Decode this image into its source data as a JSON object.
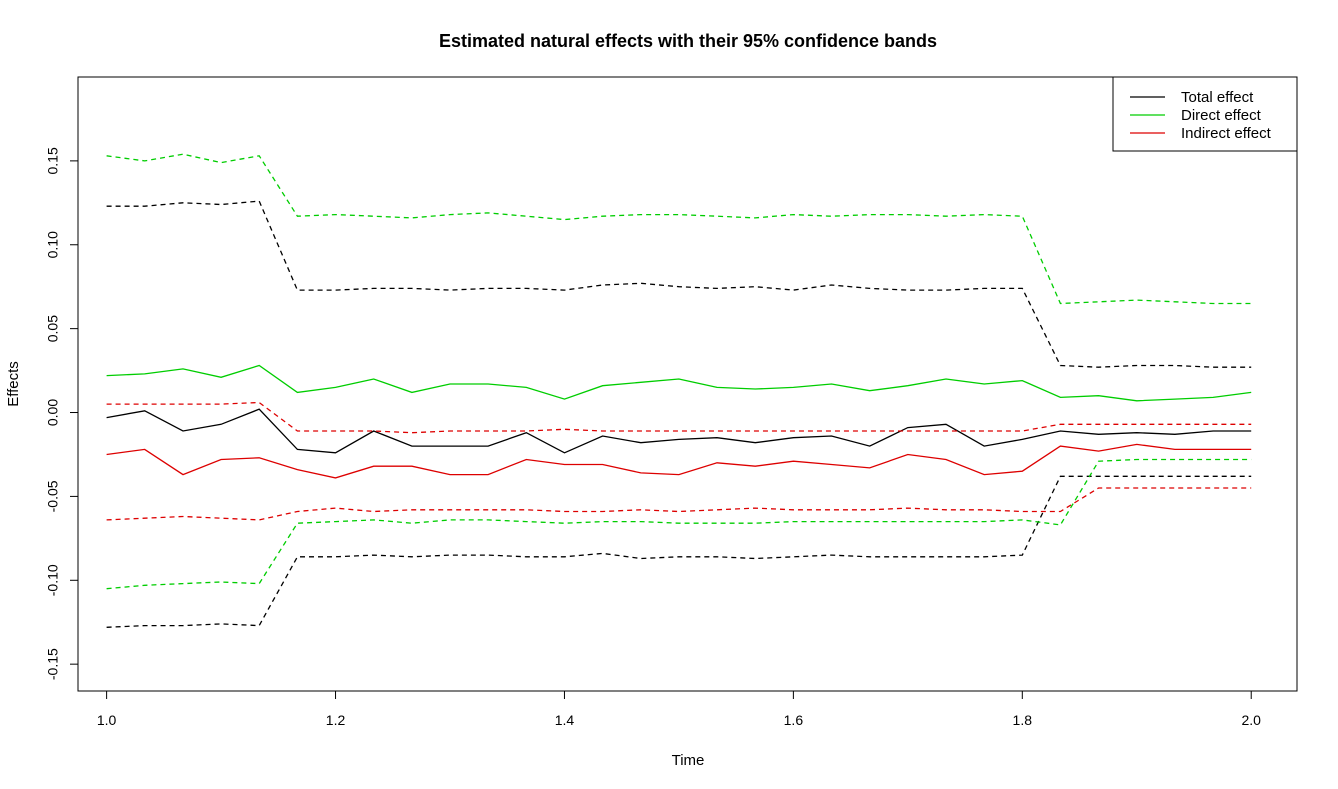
{
  "chart_data": {
    "type": "line",
    "title": "Estimated natural effects with their 95% confidence bands",
    "xlabel": "Time",
    "ylabel": "Effects",
    "xlim": [
      0.975,
      2.04
    ],
    "ylim": [
      -0.166,
      0.2
    ],
    "x_ticks": [
      1.0,
      1.2,
      1.4,
      1.6,
      1.8,
      2.0
    ],
    "x_tick_labels": [
      "1.0",
      "1.2",
      "1.4",
      "1.6",
      "1.8",
      "2.0"
    ],
    "y_ticks": [
      -0.15,
      -0.1,
      -0.05,
      0.0,
      0.05,
      0.1,
      0.15
    ],
    "y_tick_labels": [
      "-0.15",
      "-0.10",
      "-0.05",
      "0.00",
      "0.05",
      "0.10",
      "0.15"
    ],
    "grid": false,
    "legend_position": "top-right",
    "legend": [
      {
        "label": "Total effect",
        "color": "#000000"
      },
      {
        "label": "Direct effect",
        "color": "#00cd00"
      },
      {
        "label": "Indirect effect",
        "color": "#dd0000"
      }
    ],
    "x": [
      1.0,
      1.0333,
      1.0667,
      1.1,
      1.1333,
      1.1667,
      1.2,
      1.2333,
      1.2667,
      1.3,
      1.3333,
      1.3667,
      1.4,
      1.4333,
      1.4667,
      1.5,
      1.5333,
      1.5667,
      1.6,
      1.6333,
      1.6667,
      1.7,
      1.7333,
      1.7667,
      1.8,
      1.8333,
      1.8667,
      1.9,
      1.9333,
      1.9667,
      2.0
    ],
    "series": [
      {
        "name": "Total effect",
        "color": "#000000",
        "dash": false,
        "values": [
          -0.003,
          0.001,
          -0.011,
          -0.007,
          0.002,
          -0.022,
          -0.024,
          -0.011,
          -0.02,
          -0.02,
          -0.02,
          -0.012,
          -0.024,
          -0.014,
          -0.018,
          -0.016,
          -0.015,
          -0.018,
          -0.015,
          -0.014,
          -0.02,
          -0.009,
          -0.007,
          -0.02,
          -0.016,
          -0.011,
          -0.013,
          -0.012,
          -0.013,
          -0.011,
          -0.011
        ]
      },
      {
        "name": "Total effect upper",
        "color": "#000000",
        "dash": true,
        "values": [
          0.123,
          0.123,
          0.125,
          0.124,
          0.126,
          0.073,
          0.073,
          0.074,
          0.074,
          0.073,
          0.074,
          0.074,
          0.073,
          0.076,
          0.077,
          0.075,
          0.074,
          0.075,
          0.073,
          0.076,
          0.074,
          0.073,
          0.073,
          0.074,
          0.074,
          0.028,
          0.027,
          0.028,
          0.028,
          0.027,
          0.027
        ]
      },
      {
        "name": "Total effect lower",
        "color": "#000000",
        "dash": true,
        "values": [
          -0.128,
          -0.127,
          -0.127,
          -0.126,
          -0.127,
          -0.086,
          -0.086,
          -0.085,
          -0.086,
          -0.085,
          -0.085,
          -0.086,
          -0.086,
          -0.084,
          -0.087,
          -0.086,
          -0.086,
          -0.087,
          -0.086,
          -0.085,
          -0.086,
          -0.086,
          -0.086,
          -0.086,
          -0.085,
          -0.038,
          -0.038,
          -0.038,
          -0.038,
          -0.038,
          -0.038
        ]
      },
      {
        "name": "Direct effect",
        "color": "#00cd00",
        "dash": false,
        "values": [
          0.022,
          0.023,
          0.026,
          0.021,
          0.028,
          0.012,
          0.015,
          0.02,
          0.012,
          0.017,
          0.017,
          0.015,
          0.008,
          0.016,
          0.018,
          0.02,
          0.015,
          0.014,
          0.015,
          0.017,
          0.013,
          0.016,
          0.02,
          0.017,
          0.019,
          0.009,
          0.01,
          0.007,
          0.008,
          0.009,
          0.012
        ]
      },
      {
        "name": "Direct effect upper",
        "color": "#00cd00",
        "dash": true,
        "values": [
          0.153,
          0.15,
          0.154,
          0.149,
          0.153,
          0.117,
          0.118,
          0.117,
          0.116,
          0.118,
          0.119,
          0.117,
          0.115,
          0.117,
          0.118,
          0.118,
          0.117,
          0.116,
          0.118,
          0.117,
          0.118,
          0.118,
          0.117,
          0.118,
          0.117,
          0.065,
          0.066,
          0.067,
          0.066,
          0.065,
          0.065
        ]
      },
      {
        "name": "Direct effect lower",
        "color": "#00cd00",
        "dash": true,
        "values": [
          -0.105,
          -0.103,
          -0.102,
          -0.101,
          -0.102,
          -0.066,
          -0.065,
          -0.064,
          -0.066,
          -0.064,
          -0.064,
          -0.065,
          -0.066,
          -0.065,
          -0.065,
          -0.066,
          -0.066,
          -0.066,
          -0.065,
          -0.065,
          -0.065,
          -0.065,
          -0.065,
          -0.065,
          -0.064,
          -0.067,
          -0.029,
          -0.028,
          -0.028,
          -0.028,
          -0.028
        ]
      },
      {
        "name": "Indirect effect",
        "color": "#dd0000",
        "dash": false,
        "values": [
          -0.025,
          -0.022,
          -0.037,
          -0.028,
          -0.027,
          -0.034,
          -0.039,
          -0.032,
          -0.032,
          -0.037,
          -0.037,
          -0.028,
          -0.031,
          -0.031,
          -0.036,
          -0.037,
          -0.03,
          -0.032,
          -0.029,
          -0.031,
          -0.033,
          -0.025,
          -0.028,
          -0.037,
          -0.035,
          -0.02,
          -0.023,
          -0.019,
          -0.022,
          -0.022,
          -0.022
        ]
      },
      {
        "name": "Indirect effect upper",
        "color": "#dd0000",
        "dash": true,
        "values": [
          0.005,
          0.005,
          0.005,
          0.005,
          0.006,
          -0.011,
          -0.011,
          -0.011,
          -0.012,
          -0.011,
          -0.011,
          -0.011,
          -0.01,
          -0.011,
          -0.011,
          -0.011,
          -0.011,
          -0.011,
          -0.011,
          -0.011,
          -0.011,
          -0.011,
          -0.011,
          -0.011,
          -0.011,
          -0.007,
          -0.007,
          -0.007,
          -0.007,
          -0.007,
          -0.007
        ]
      },
      {
        "name": "Indirect effect lower",
        "color": "#dd0000",
        "dash": true,
        "values": [
          -0.064,
          -0.063,
          -0.062,
          -0.063,
          -0.064,
          -0.059,
          -0.057,
          -0.059,
          -0.058,
          -0.058,
          -0.058,
          -0.058,
          -0.059,
          -0.059,
          -0.058,
          -0.059,
          -0.058,
          -0.057,
          -0.058,
          -0.058,
          -0.058,
          -0.057,
          -0.058,
          -0.058,
          -0.059,
          -0.059,
          -0.045,
          -0.045,
          -0.045,
          -0.045,
          -0.045
        ]
      }
    ]
  }
}
